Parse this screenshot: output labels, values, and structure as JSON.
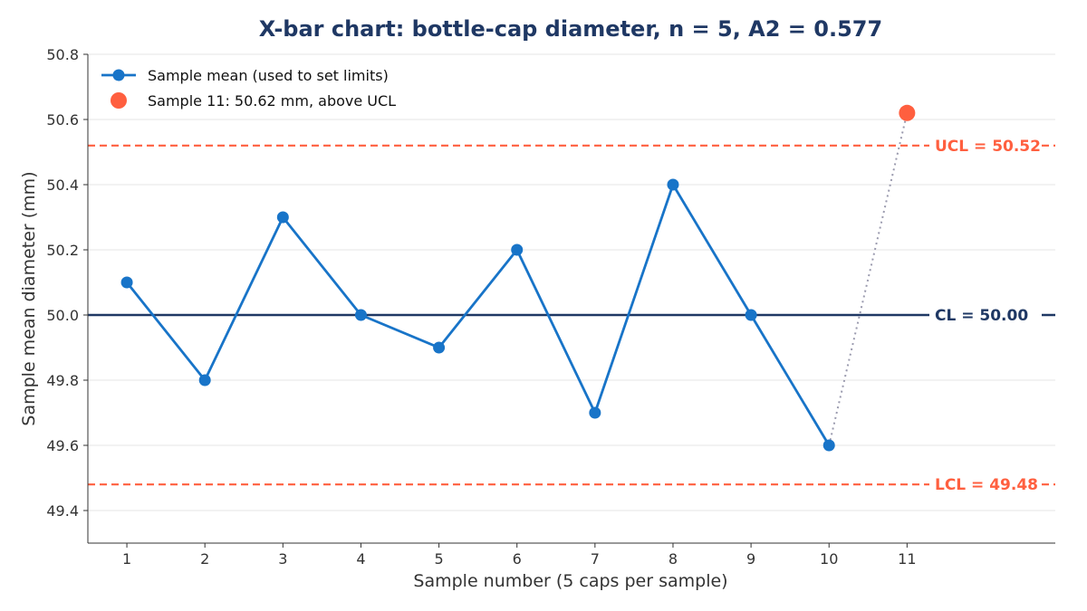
{
  "chart_data": {
    "type": "line",
    "title": "X-bar chart: bottle-cap diameter, n = 5, A2 = 0.577",
    "xlabel": "Sample number (5 caps per sample)",
    "ylabel": "Sample mean diameter (mm)",
    "xlim": [
      0.5,
      12.9
    ],
    "ylim": [
      49.3,
      50.8
    ],
    "x_ticks": [
      1,
      2,
      3,
      4,
      5,
      6,
      7,
      8,
      9,
      10,
      11
    ],
    "y_ticks": [
      49.4,
      49.6,
      49.8,
      50.0,
      50.2,
      50.4,
      50.6,
      50.8
    ],
    "y_tick_labels": [
      "49.4",
      "49.6",
      "49.8",
      "50.0",
      "50.2",
      "50.4",
      "50.6",
      "50.8"
    ],
    "grid": "horizontal",
    "legend_position": "top-left",
    "series": [
      {
        "name": "Sample mean (used to set limits)",
        "color": "#1874c8",
        "x": [
          1,
          2,
          3,
          4,
          5,
          6,
          7,
          8,
          9,
          10
        ],
        "values": [
          50.1,
          49.8,
          50.3,
          50.0,
          49.9,
          50.2,
          49.7,
          50.4,
          50.0,
          49.6
        ]
      },
      {
        "name": "Sample 11: 50.62 mm, above UCL",
        "color": "#ff5f3f",
        "x": [
          11
        ],
        "values": [
          50.62
        ]
      }
    ],
    "reference_lines": [
      {
        "id": "ucl",
        "value": 50.52,
        "label": "UCL = 50.52",
        "color": "#ff5f3f",
        "style": "dashed"
      },
      {
        "id": "cl",
        "value": 50.0,
        "label": "CL = 50.00",
        "color": "#1f3864",
        "style": "solid"
      },
      {
        "id": "lcl",
        "value": 49.48,
        "label": "LCL = 49.48",
        "color": "#ff5f3f",
        "style": "dashed"
      }
    ],
    "connector": {
      "from_x": 10,
      "to_x": 11,
      "color": "#9a9aae",
      "style": "dotted"
    }
  }
}
